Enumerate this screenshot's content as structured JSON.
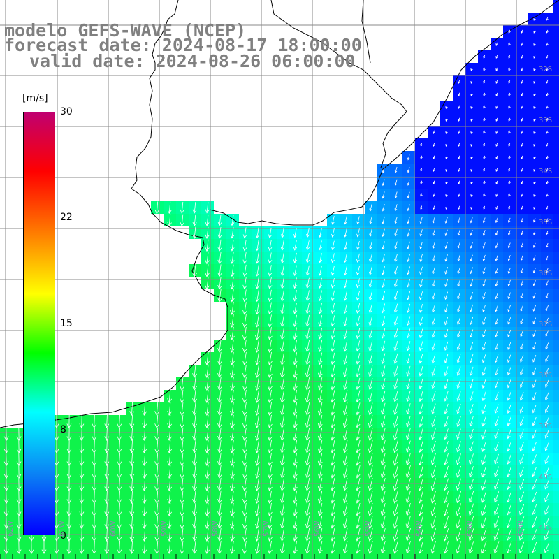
{
  "title": {
    "line1": "modelo GEFS-WAVE (NCEP)",
    "line2": "forecast date: 2024-08-17 18:00:00",
    "line3": "valid date: 2024-08-26 06:00:00"
  },
  "colorbar": {
    "unit": "[m/s]",
    "ticks": [
      "30",
      "22",
      "15",
      "8",
      "0"
    ],
    "tick_values": [
      30,
      22,
      15,
      8,
      0
    ],
    "range": [
      0,
      30
    ],
    "colors": [
      "#0000ff",
      "#0a7ff5",
      "#00ffff",
      "#00ff00",
      "#ffff00",
      "#ff8000",
      "#ff0000",
      "#c00070"
    ]
  },
  "map": {
    "lat_labels": [
      "32S",
      "33S",
      "34S",
      "35S",
      "36S",
      "37S",
      "38S",
      "39S",
      "40S",
      "41S"
    ],
    "lon_labels": [
      "62W",
      "61W",
      "60W",
      "59W",
      "58W",
      "57W",
      "56W",
      "55W",
      "54W",
      "53W",
      "52W"
    ],
    "wind_speed_description_colors": {
      "low": "#0030ff",
      "mid": "#00ffff",
      "high": "#22dd22"
    }
  }
}
